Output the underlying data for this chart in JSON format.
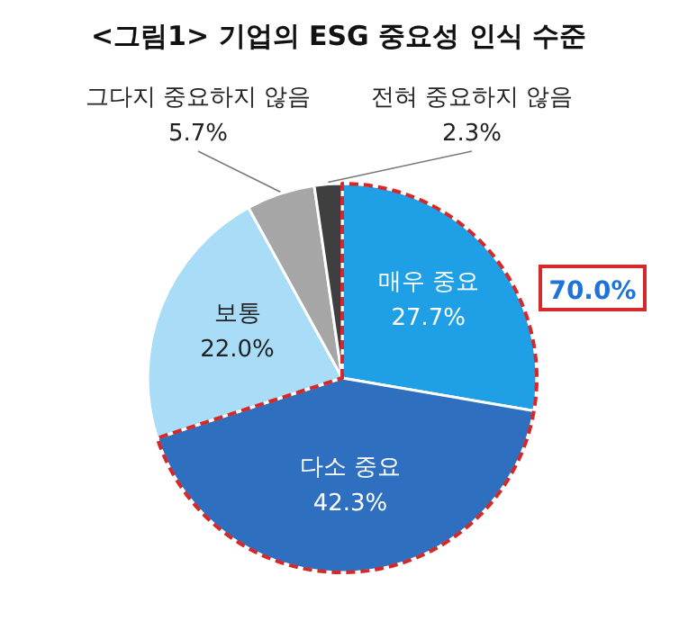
{
  "chart_data": {
    "type": "pie",
    "title": "<그림1> 기업의 ESG 중요성 인식 수준",
    "categories": [
      "매우 중요",
      "다소 중요",
      "보통",
      "그다지 중요하지 않음",
      "전혀 중요하지 않음"
    ],
    "values": [
      27.7,
      42.3,
      22.0,
      5.7,
      2.3
    ],
    "value_labels": [
      "27.7%",
      "42.3%",
      "22.0%",
      "5.7%",
      "2.3%"
    ],
    "colors": [
      "#1e9fe6",
      "#2f6fc0",
      "#a8dcf7",
      "#a6a6a6",
      "#3f3f3f"
    ],
    "annotations": [
      "70.0%"
    ],
    "legend": false
  }
}
